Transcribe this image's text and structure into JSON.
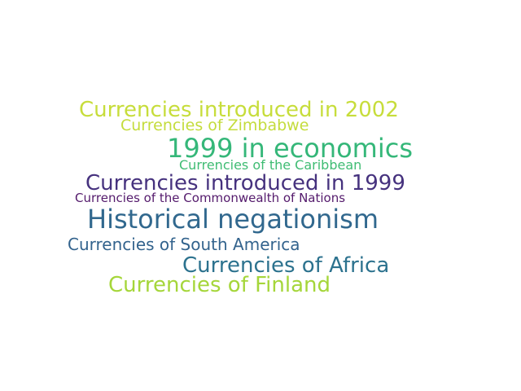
{
  "word_cloud": {
    "words": [
      {
        "text": "Currencies introduced in 2002",
        "color": "#c7dd3b"
      },
      {
        "text": "Currencies of Zimbabwe",
        "color": "#c4dc3c"
      },
      {
        "text": "1999 in economics",
        "color": "#35b779"
      },
      {
        "text": "Currencies of the Caribbean",
        "color": "#3fbc73"
      },
      {
        "text": "Currencies introduced in 1999",
        "color": "#46327e"
      },
      {
        "text": "Currencies of the Commonwealth of Nations",
        "color": "#541a6c"
      },
      {
        "text": "Historical negationism",
        "color": "#31688e"
      },
      {
        "text": "Currencies of South America",
        "color": "#33638d"
      },
      {
        "text": "Currencies of Africa",
        "color": "#2c728e"
      },
      {
        "text": "Currencies of Finland",
        "color": "#a5d63a"
      }
    ]
  }
}
